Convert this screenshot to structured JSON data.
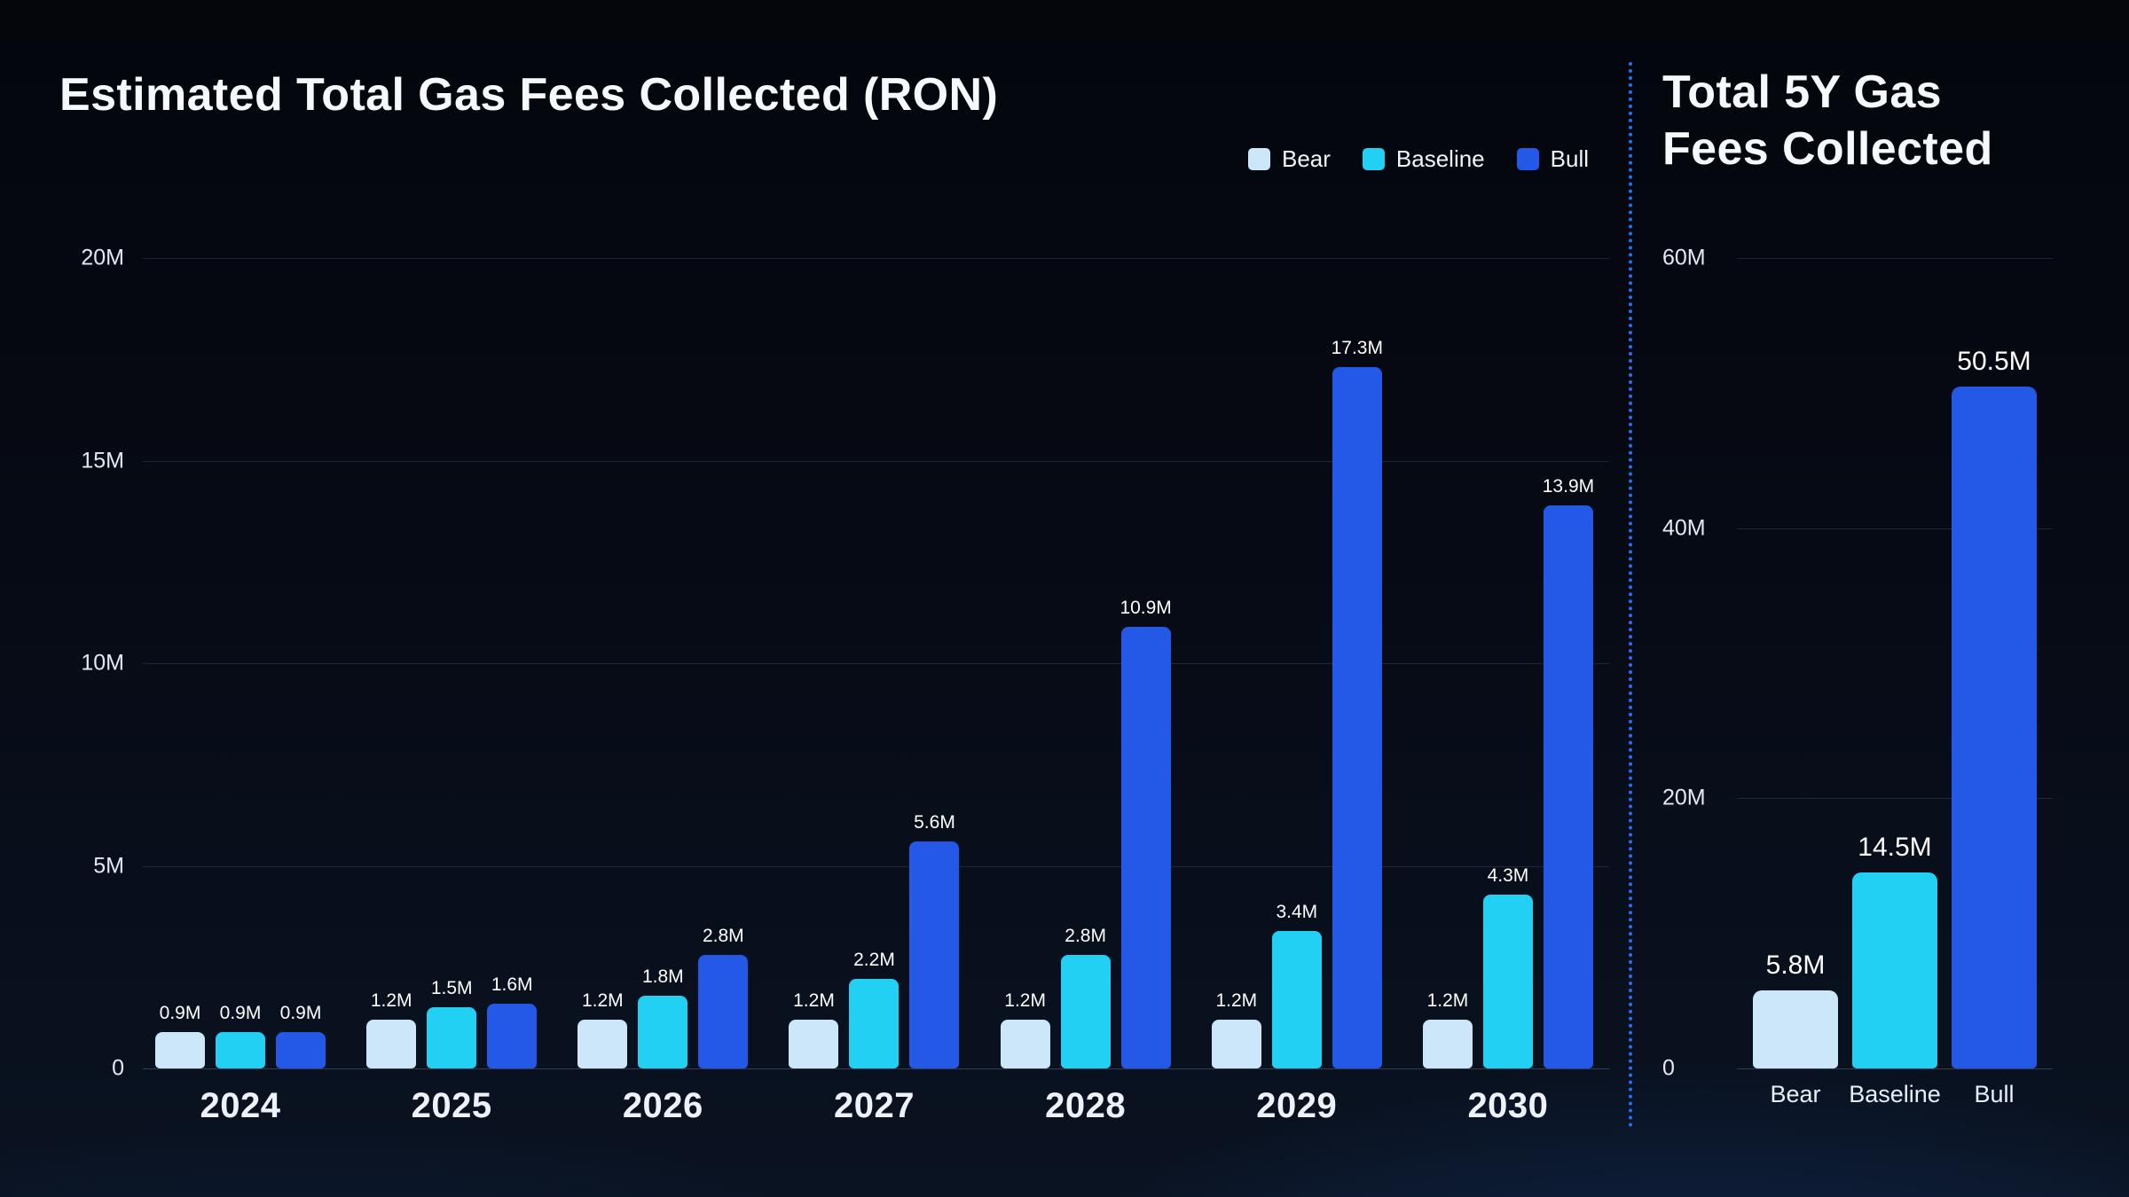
{
  "page": {
    "divider_color": "#2f6bf2"
  },
  "chart_data": [
    {
      "type": "bar",
      "title": "Estimated Total Gas Fees Collected (RON)",
      "legend_position": "top-right",
      "grid": true,
      "unit": "RON (millions)",
      "ylim": [
        0,
        20000000
      ],
      "y_ticks": [
        {
          "value": 20,
          "label": "20M"
        },
        {
          "value": 15,
          "label": "15M"
        },
        {
          "value": 10,
          "label": "10M"
        },
        {
          "value": 5,
          "label": "5M"
        },
        {
          "value": 0,
          "label": "0"
        }
      ],
      "categories": [
        "2024",
        "2025",
        "2026",
        "2027",
        "2028",
        "2029",
        "2030"
      ],
      "series": [
        {
          "name": "Bear",
          "color": "#cde7fa",
          "values_m": [
            0.9,
            1.2,
            1.2,
            1.2,
            1.2,
            1.2,
            1.2
          ],
          "labels": [
            "0.9M",
            "1.2M",
            "1.2M",
            "1.2M",
            "1.2M",
            "1.2M",
            "1.2M"
          ]
        },
        {
          "name": "Baseline",
          "color": "#21d0f3",
          "values_m": [
            0.9,
            1.5,
            1.8,
            2.2,
            2.8,
            3.4,
            4.3
          ],
          "labels": [
            "0.9M",
            "1.5M",
            "1.8M",
            "2.2M",
            "2.8M",
            "3.4M",
            "4.3M"
          ]
        },
        {
          "name": "Bull",
          "color": "#2459e8",
          "values_m": [
            0.9,
            1.6,
            2.8,
            5.6,
            10.9,
            17.3,
            13.9
          ],
          "labels": [
            "0.9M",
            "1.6M",
            "2.8M",
            "5.6M",
            "10.9M",
            "17.3M",
            "13.9M"
          ]
        }
      ]
    },
    {
      "type": "bar",
      "title": "Total 5Y Gas Fees Collected",
      "title_lines": [
        "Total 5Y Gas",
        "Fees Collected"
      ],
      "grid": true,
      "unit": "RON (millions)",
      "ylim": [
        0,
        60000000
      ],
      "y_ticks": [
        {
          "value": 60,
          "label": "60M"
        },
        {
          "value": 40,
          "label": "40M"
        },
        {
          "value": 20,
          "label": "20M"
        },
        {
          "value": 0,
          "label": "0"
        }
      ],
      "categories": [
        "Bear",
        "Baseline",
        "Bull"
      ],
      "values_m": [
        5.8,
        14.5,
        50.5
      ],
      "labels": [
        "5.8M",
        "14.5M",
        "50.5M"
      ],
      "colors": [
        "#cde7fa",
        "#21d0f3",
        "#2459e8"
      ]
    }
  ]
}
